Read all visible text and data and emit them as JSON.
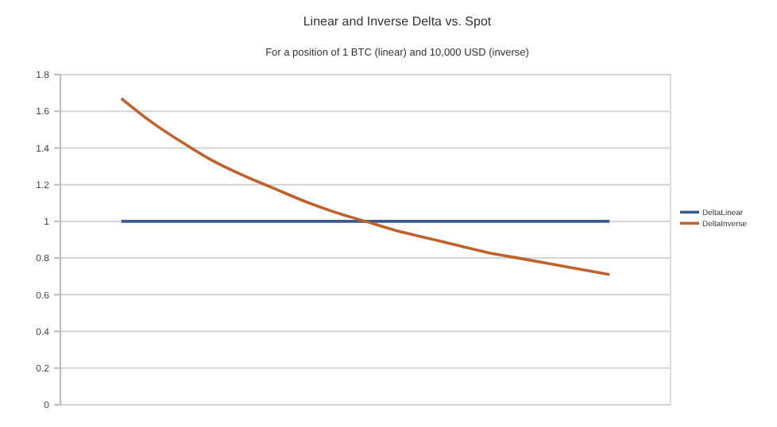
{
  "chart_data": {
    "type": "line",
    "title": "Linear and Inverse Delta vs. Spot",
    "subtitle": "For a position of 1 BTC (linear) and 10,000 USD (inverse)",
    "categories": [
      null,
      null,
      null,
      null,
      null,
      null,
      null,
      null,
      null,
      null,
      null,
      null,
      null,
      null,
      null,
      null,
      null
    ],
    "series": [
      {
        "name": "DeltaLinear",
        "color": "#3b5b8e",
        "values": [
          1,
          1,
          1,
          1,
          1,
          1,
          1,
          1,
          1,
          1,
          1,
          1,
          1,
          1,
          1,
          1,
          1
        ]
      },
      {
        "name": "DeltaInverse",
        "color": "#c0622d",
        "values": [
          1.67,
          1.54,
          1.43,
          1.33,
          1.25,
          1.18,
          1.11,
          1.05,
          1,
          0.95,
          0.91,
          0.87,
          0.83,
          0.8,
          0.77,
          0.74,
          0.71
        ]
      }
    ],
    "ylim": [
      0,
      1.8
    ],
    "yticks": [
      0,
      0.2,
      0.4,
      0.6,
      0.8,
      1,
      1.2,
      1.4,
      1.6,
      1.8
    ],
    "grid": "y",
    "legend": "right",
    "marker": "none",
    "line_style": "solid"
  }
}
